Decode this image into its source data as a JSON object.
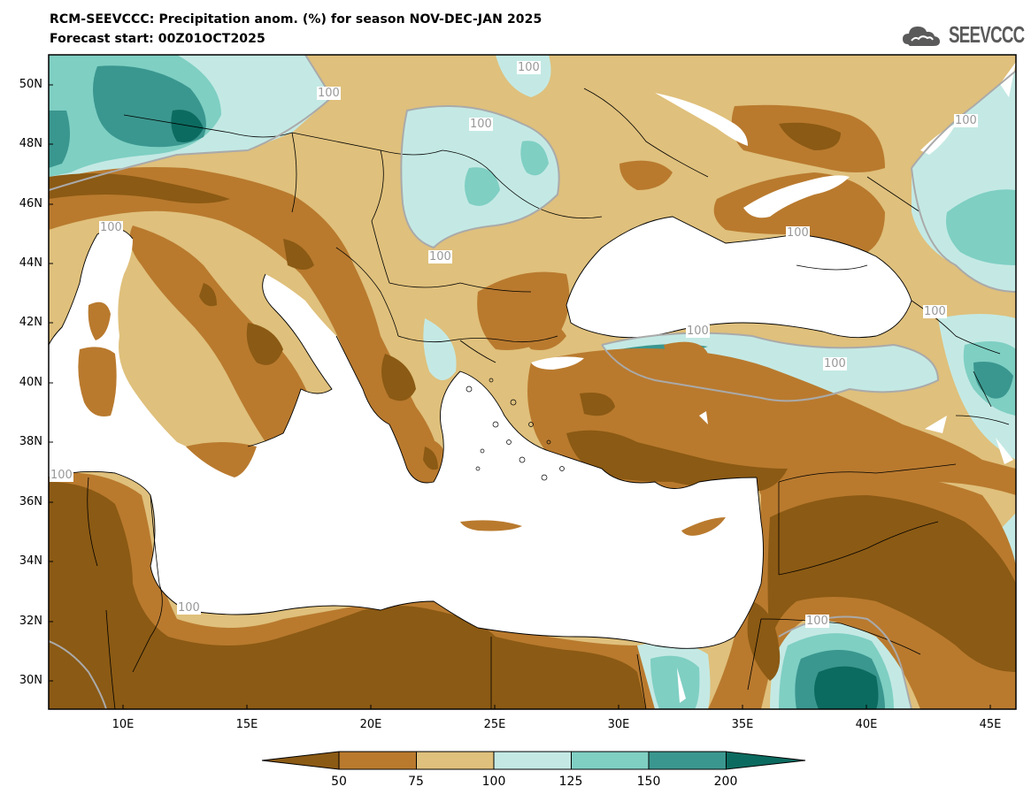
{
  "header": {
    "title": "RCM-SEEVCCC: Precipitation anom. (%) for season NOV-DEC-JAN 2025",
    "subtitle": "Forecast start: 00Z01OCT2025",
    "logo_text": "SEEVCCC"
  },
  "map": {
    "region": "Southeast Europe, Mediterranean and Middle East",
    "variable": "Precipitation anomaly (%)",
    "lat_labels": [
      "50N",
      "48N",
      "46N",
      "44N",
      "42N",
      "40N",
      "38N",
      "36N",
      "34N",
      "32N",
      "30N"
    ],
    "lon_labels": [
      "10E",
      "15E",
      "20E",
      "25E",
      "30E",
      "35E",
      "40E",
      "45E"
    ],
    "contour_labels": [
      "100",
      "100",
      "100",
      "100",
      "100",
      "100",
      "100",
      "100",
      "100",
      "100",
      "100",
      "100",
      "100"
    ]
  },
  "legend": {
    "thresholds": [
      "50",
      "75",
      "100",
      "125",
      "150",
      "200"
    ],
    "colors": [
      "#8b5a14",
      "#b97a2e",
      "#dfc07c",
      "#c4e9e4",
      "#7fcfc3",
      "#3a978f",
      "#0c6b60"
    ]
  }
}
